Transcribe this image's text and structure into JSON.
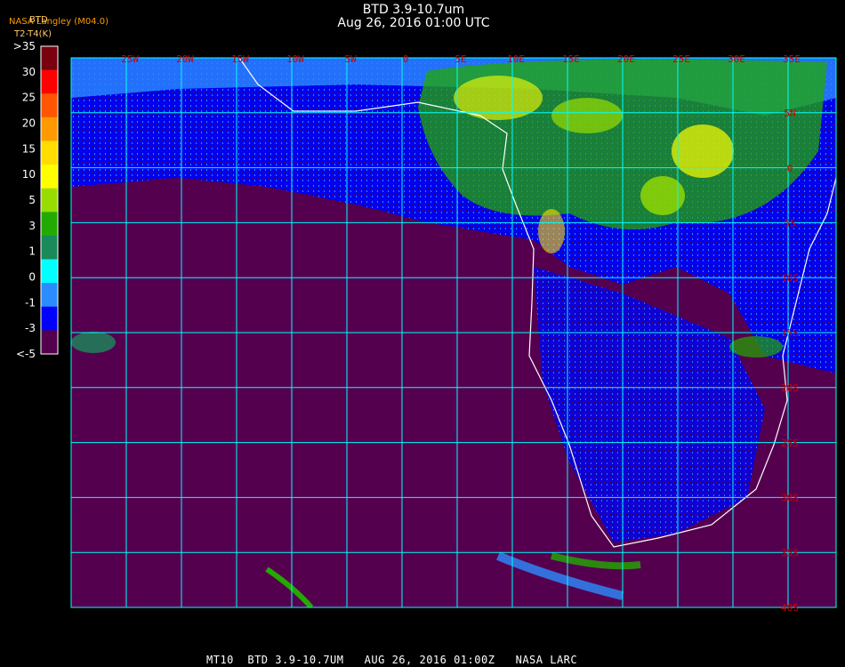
{
  "header": {
    "title": "BTD 3.9-10.7um",
    "subtitle": "Aug 26, 2016 01:00 UTC",
    "source": "NASA Langley (M04.0)",
    "product": "BTD",
    "units": "T2-T4(K)"
  },
  "legend": {
    "labels": [
      ">35",
      "30",
      "25",
      "20",
      "15",
      "10",
      "5",
      "3",
      "1",
      "0",
      "-1",
      "-3",
      "<-5"
    ],
    "colors": [
      "#7a0010",
      "#ff0000",
      "#ff5500",
      "#ff9900",
      "#ffdd00",
      "#ffff00",
      "#99dd00",
      "#22aa00",
      "#1a8a5a",
      "#00ffff",
      "#2a8cff",
      "#0000ff",
      "#55004f"
    ]
  },
  "map": {
    "longitudes": [
      "25W",
      "20W",
      "15W",
      "10W",
      "5W",
      "0",
      "5E",
      "10E",
      "15E",
      "20E",
      "25E",
      "30E",
      "35E"
    ],
    "latitudes": [
      "5N",
      "0",
      "5S",
      "10S",
      "15S",
      "20S",
      "25S",
      "30S",
      "35S",
      "40S"
    ]
  },
  "footer": {
    "caption": "MT10  BTD 3.9-10.7UM   AUG 26, 2016 01:00Z   NASA LARC"
  }
}
